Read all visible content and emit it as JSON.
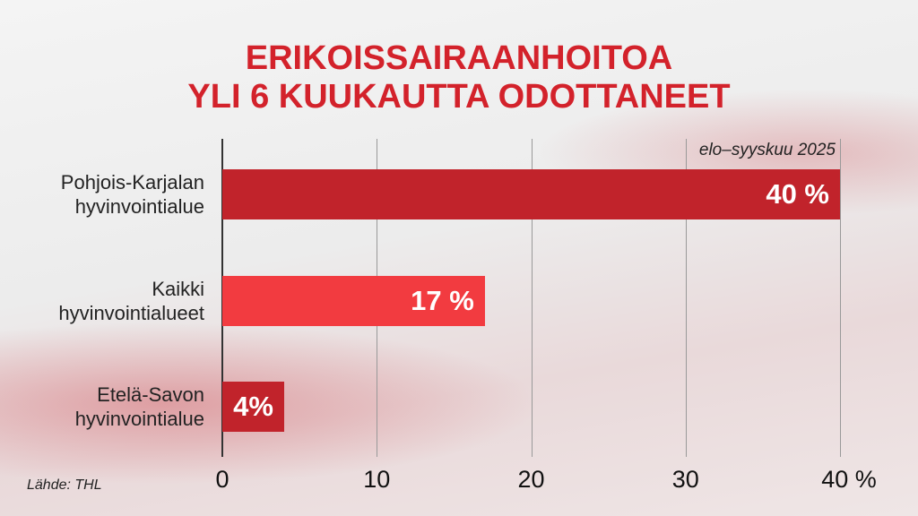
{
  "chart_data": {
    "type": "hbar",
    "title": "ERIKOISSAIRAANHOITOA\nYLI 6 KUUKAUTTA ODOTTANEET",
    "subtitle": "elo–syyskuu 2025",
    "source": "Lähde: THL",
    "categories": [
      "Pohjois-Karjalan\nhyvinvointialue",
      "Kaikki\nhyvinvointialueet",
      "Etelä-Savon\nhyvinvointialue"
    ],
    "values": [
      40,
      17,
      4
    ],
    "value_labels": [
      "40 %",
      "17 %",
      "4%"
    ],
    "colors": [
      "#c1232b",
      "#f23b40",
      "#c1232b"
    ],
    "xlim": [
      0,
      40
    ],
    "xticks": [
      0,
      10,
      20,
      30,
      {
        "value": 40,
        "label": "40 %"
      }
    ],
    "grid": true
  }
}
